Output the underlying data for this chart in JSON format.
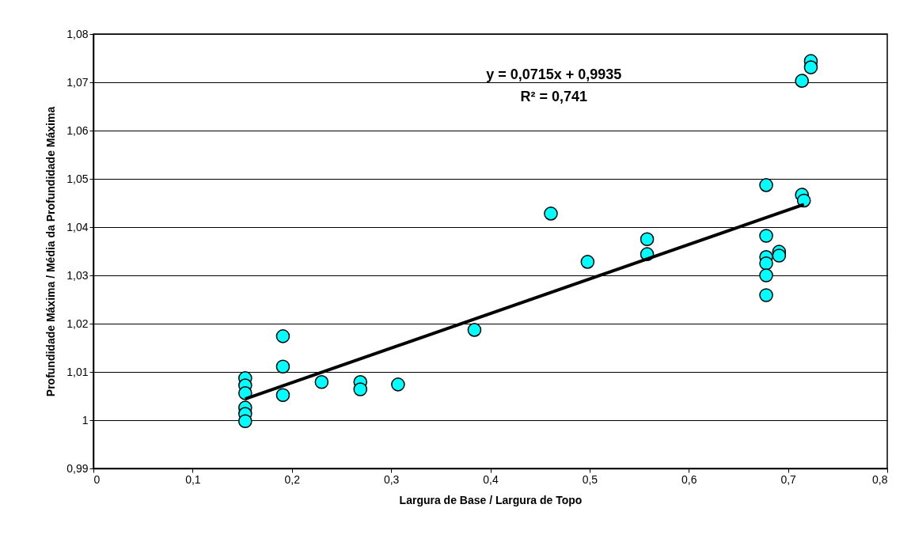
{
  "chart_data": {
    "type": "scatter",
    "xlabel": "Largura de Base / Largura de Topo",
    "ylabel": "Profundidade Máxima / Média da Profundidade Máxima",
    "annotations": [
      "y = 0,0715x + 0,9935",
      "R² = 0,741"
    ],
    "xlim": [
      0,
      0.8
    ],
    "ylim": [
      0.99,
      1.08
    ],
    "xticks": [
      0,
      {
        "value": 0.1,
        "label": "0,1"
      },
      {
        "value": 0.2,
        "label": "0,2"
      },
      {
        "value": 0.3,
        "label": "0,3"
      },
      {
        "value": 0.4,
        "label": "0,4"
      },
      {
        "value": 0.5,
        "label": "0,5"
      },
      {
        "value": 0.6,
        "label": "0,6"
      },
      {
        "value": 0.7,
        "label": "0,7"
      },
      {
        "value": 0.8,
        "label": "0,8"
      }
    ],
    "yticks": [
      {
        "value": 0.99,
        "label": "0,99"
      },
      1,
      {
        "value": 1.01,
        "label": "1,01"
      },
      {
        "value": 1.02,
        "label": "1,02"
      },
      {
        "value": 1.03,
        "label": "1,03"
      },
      {
        "value": 1.04,
        "label": "1,04"
      },
      {
        "value": 1.05,
        "label": "1,05"
      },
      {
        "value": 1.06,
        "label": "1,06"
      },
      {
        "value": 1.07,
        "label": "1,07"
      },
      {
        "value": 1.08,
        "label": "1,08"
      }
    ],
    "grid": "y",
    "legend": false,
    "marker": "circle",
    "series": [
      {
        "color": "#00ffff",
        "x": [
          0.153,
          0.153,
          0.153,
          0.153,
          0.153,
          0.153,
          0.191,
          0.191,
          0.191,
          0.23,
          0.269,
          0.269,
          0.307,
          0.384,
          0.461,
          0.498,
          0.558,
          0.558,
          0.678,
          0.678,
          0.678,
          0.678,
          0.678,
          0.678,
          0.691,
          0.691,
          0.714,
          0.716,
          0.714,
          0.723,
          0.723
        ],
        "values": [
          1.0087,
          1.0072,
          1.0056,
          1.0026,
          1.0013,
          0.9998,
          1.0174,
          1.0111,
          1.0052,
          1.0079,
          1.0079,
          1.0064,
          1.0074,
          1.0187,
          1.0428,
          1.0328,
          1.0375,
          1.0344,
          1.0487,
          1.0382,
          1.0338,
          1.0325,
          1.03,
          1.0259,
          1.0349,
          1.0341,
          1.0467,
          1.0455,
          1.0703,
          1.0744,
          1.0731
        ]
      },
      {
        "type": "line",
        "color": "#000000",
        "marker": "none",
        "x": [
          0.153,
          0.716
        ],
        "values": [
          1.0044,
          1.0447
        ]
      }
    ]
  }
}
